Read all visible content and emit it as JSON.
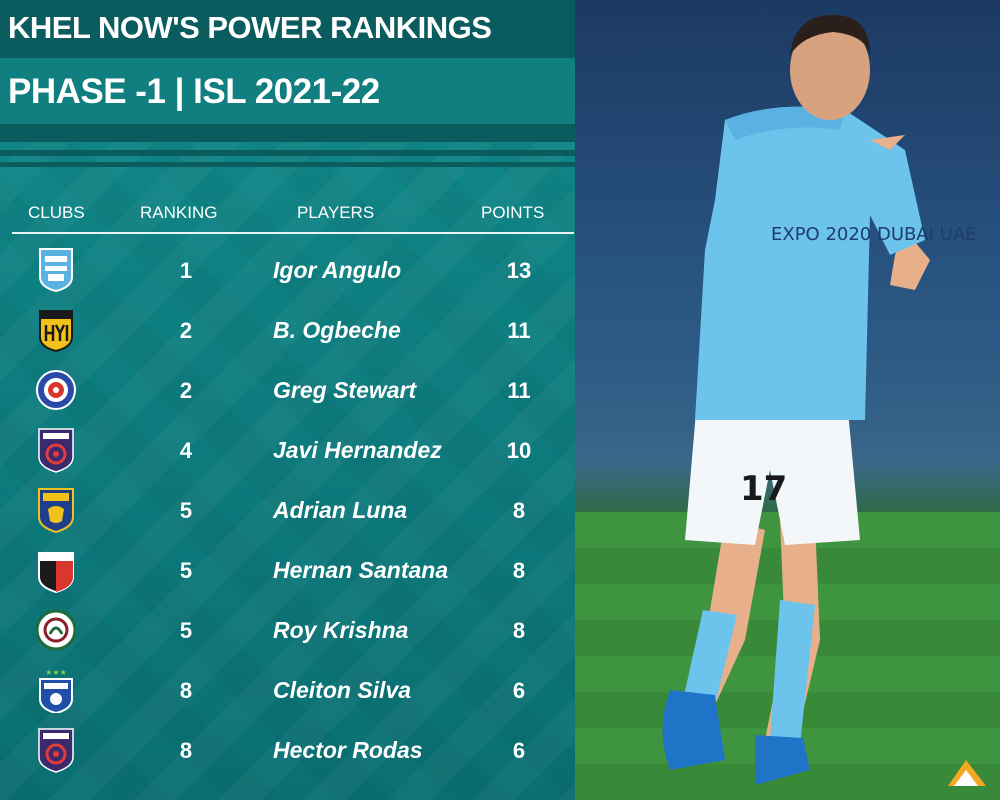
{
  "header": {
    "title": "KHEL NOW'S POWER RANKINGS",
    "subtitle": "PHASE -1 | ISL 2021-22"
  },
  "columns": [
    "CLUBS",
    "RANKING",
    "PLAYERS",
    "POINTS"
  ],
  "rows": [
    {
      "club_icon": "mumbai-city-crest-icon",
      "rank": "1",
      "player": "Igor Angulo",
      "points": "13"
    },
    {
      "club_icon": "hyderabad-fc-crest-icon",
      "rank": "2",
      "player": "B. Ogbeche",
      "points": "11"
    },
    {
      "club_icon": "jamshedpur-fc-crest-icon",
      "rank": "2",
      "player": "Greg Stewart",
      "points": "11"
    },
    {
      "club_icon": "odisha-fc-crest-icon",
      "rank": "4",
      "player": "Javi Hernandez",
      "points": "10"
    },
    {
      "club_icon": "kerala-blasters-crest-icon",
      "rank": "5",
      "player": "Adrian Luna",
      "points": "8"
    },
    {
      "club_icon": "northeast-united-crest-icon",
      "rank": "5",
      "player": "Hernan Santana",
      "points": "8"
    },
    {
      "club_icon": "atk-mohun-bagan-crest-icon",
      "rank": "5",
      "player": "Roy Krishna",
      "points": "8"
    },
    {
      "club_icon": "bengaluru-fc-crest-icon",
      "rank": "8",
      "player": "Cleiton Silva",
      "points": "6"
    },
    {
      "club_icon": "odisha-fc-crest-icon",
      "rank": "8",
      "player": "Hector Rodas",
      "points": "6"
    }
  ],
  "photo": {
    "shirt_number": "17",
    "sponsor": "EXPO 2020 DUBAI UAE"
  },
  "colors": {
    "panel": "#118a8b",
    "band": "#0b5c5f",
    "text": "#ffffff",
    "kit": "#6cc3ec"
  }
}
